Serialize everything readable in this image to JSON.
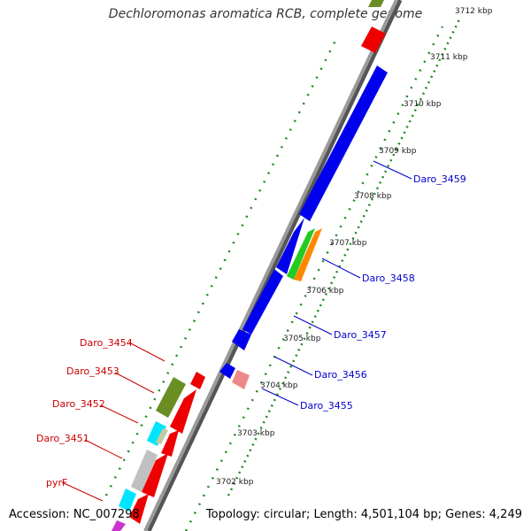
{
  "title": "Dechloromonas aromatica RCB, complete genome",
  "footer": {
    "accession": "Accession: NC_007298",
    "summary": "Topology: circular; Length: 4,501,104 bp; Genes: 4,249"
  },
  "ticks": [
    "3712 kbp",
    "3711 kbp",
    "3710 kbp",
    "3709 kbp",
    "3708 kbp",
    "3707 kbp",
    "3706 kbp",
    "3705 kbp",
    "3704 kbp",
    "3703 kbp",
    "3702 kbp"
  ],
  "gene_labels": {
    "left": [
      "Daro_3454",
      "Daro_3453",
      "Daro_3452",
      "Daro_3451",
      "pyrF"
    ],
    "right": [
      "Daro_3459",
      "Daro_3458",
      "Daro_3457",
      "Daro_3456",
      "Daro_3455"
    ]
  },
  "colors": {
    "forward_gene": "#ee0000",
    "reverse_gene": "#0000ee",
    "olive": "#6b8e23",
    "green": "#22cc22",
    "orange": "#ff8800",
    "cyan": "#00e5ff",
    "grey": "#c0c0c0",
    "pink": "#ee8888",
    "backbone": "#808080",
    "tick_dots": "#228822"
  }
}
